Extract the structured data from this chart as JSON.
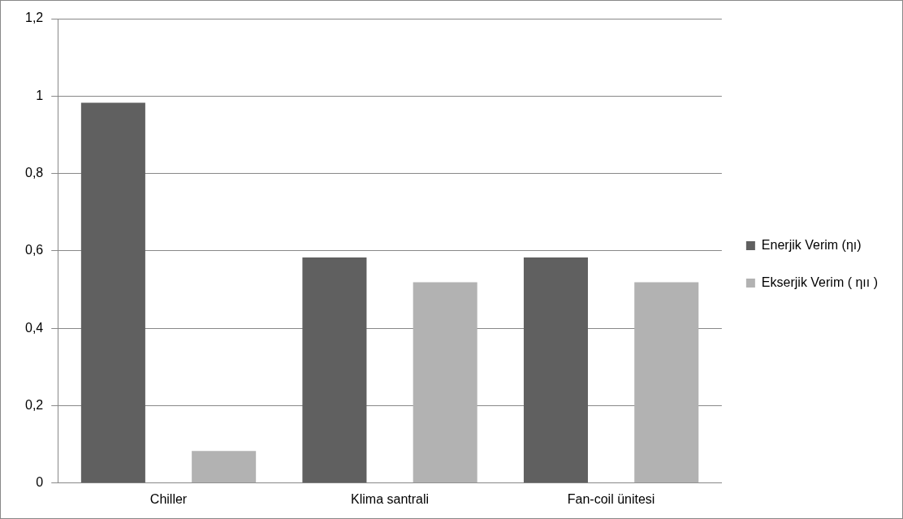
{
  "chart_data": {
    "type": "bar",
    "categories": [
      "Chiller",
      "Klima santrali",
      "Fan-coil ünitesi"
    ],
    "series": [
      {
        "name": "Enerjik Verim (ηı)",
        "color": "#606060",
        "values": [
          0.983,
          0.583,
          0.583
        ]
      },
      {
        "name": "Ekserjik Verim ( ηıı )",
        "color": "#b2b2b2",
        "values": [
          0.083,
          0.519,
          0.519
        ]
      }
    ],
    "ylim": [
      0,
      1.2
    ],
    "yticks": [
      0,
      {
        "value": 0.2,
        "label": "0,2"
      },
      {
        "value": 0.4,
        "label": "0,4"
      },
      {
        "value": 0.6,
        "label": "0,6"
      },
      {
        "value": 0.8,
        "label": "0,8"
      },
      1,
      {
        "value": 1.2,
        "label": "1,2"
      }
    ],
    "grid": "y",
    "legend": "right"
  }
}
